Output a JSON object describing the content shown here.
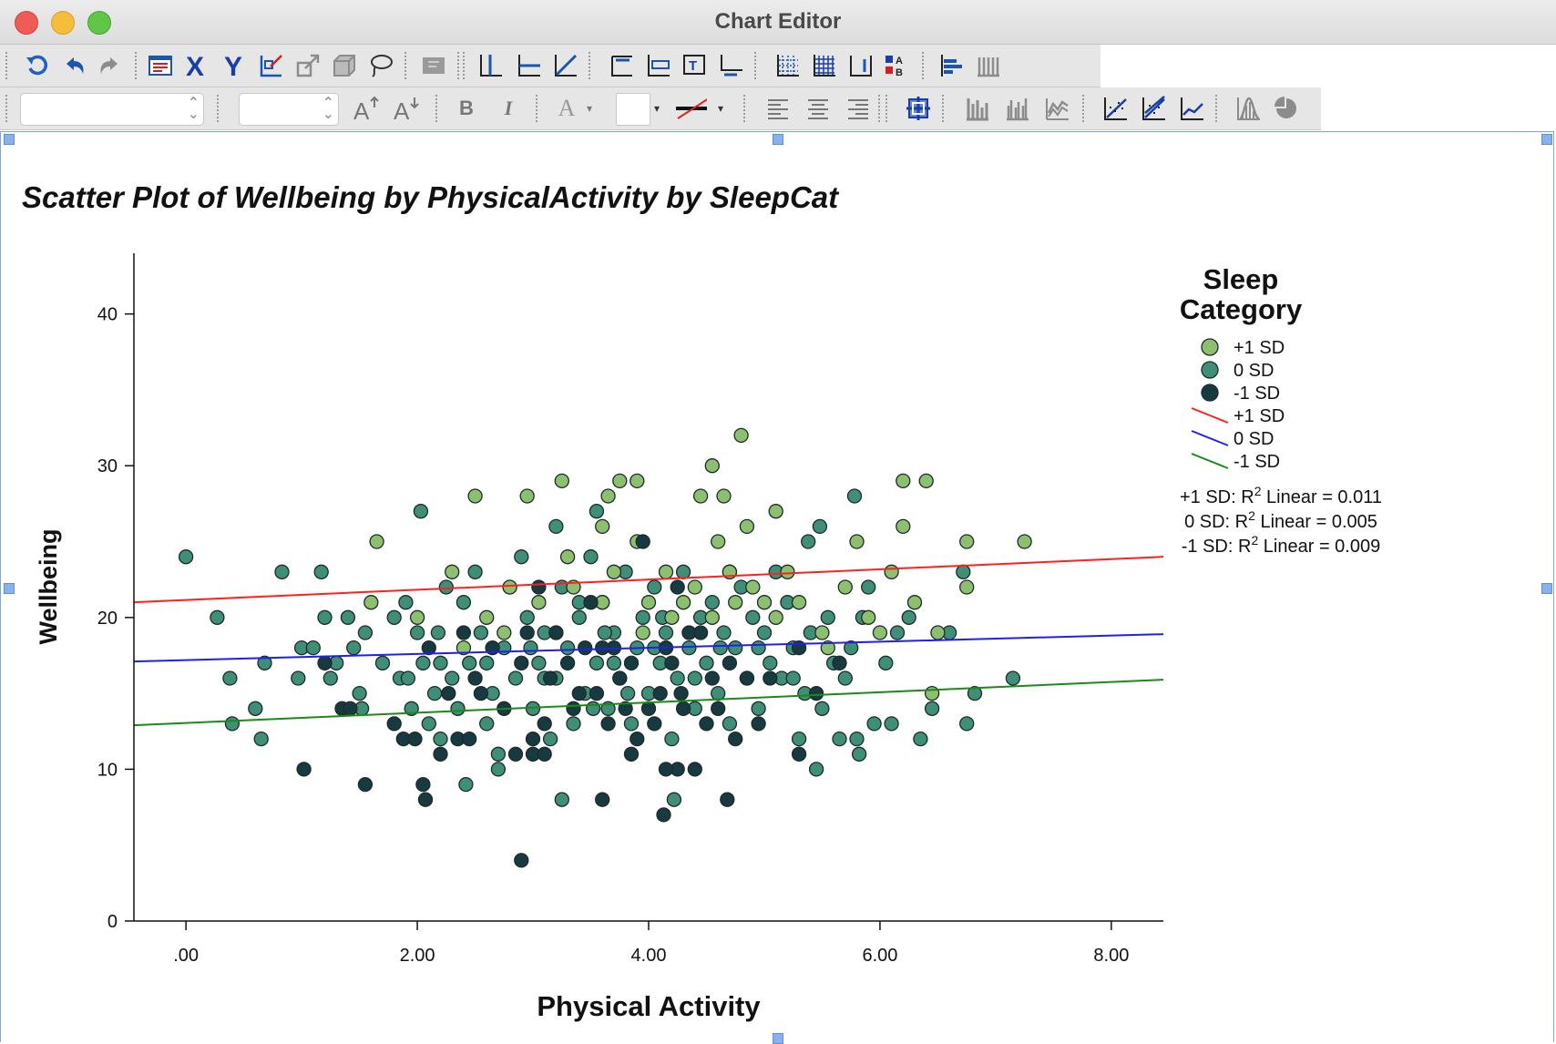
{
  "window": {
    "title": "Chart Editor",
    "controls": [
      "close",
      "minimize",
      "maximize"
    ]
  },
  "toolbar_row1": {
    "icons": [
      "rotate-icon",
      "undo-icon",
      "redo-icon",
      "properties-icon",
      "x-axis-icon",
      "y-axis-icon",
      "data-label-mode-icon",
      "rescale-icon",
      "3d-rotate-icon",
      "lasso-icon",
      "transpose-icon",
      "reference-line-x-icon",
      "reference-line-y-icon",
      "reference-line-equation-icon",
      "title-icon",
      "annotation-icon",
      "text-box-icon",
      "footnote-icon",
      "grid-lines-icon",
      "grid-icon",
      "data-labels-icon",
      "legend-icon",
      "bar-label-icon",
      "scale-icon"
    ]
  },
  "toolbar_row2": {
    "font_combo_value": "",
    "size_combo_value": "",
    "bold_label": "B",
    "italic_label": "I",
    "text_color_label": "A",
    "icons": [
      "font-grow-icon",
      "font-shrink-icon",
      "fill-color-icon",
      "line-style-icon",
      "align-left-icon",
      "align-center-icon",
      "align-right-icon",
      "data-id-icon",
      "bar-chart-icon",
      "clustered-bar-icon",
      "line-chart-icon",
      "fit-line-total-icon",
      "fit-line-subgroups-icon",
      "interpolation-line-icon",
      "distribution-curve-icon",
      "pie-icon"
    ]
  },
  "chart_data": {
    "type": "scatter",
    "title": "Scatter Plot of Wellbeing by PhysicalActivity by SleepCat",
    "xlabel": "Physical Activity",
    "ylabel": "Wellbeing",
    "xlim": [
      -0.45,
      8.45
    ],
    "ylim": [
      0,
      44
    ],
    "xticks": [
      0,
      2,
      4,
      6,
      8
    ],
    "xtick_labels": [
      ".00",
      "2.00",
      "4.00",
      "6.00",
      "8.00"
    ],
    "yticks": [
      0,
      10,
      20,
      30,
      40
    ],
    "ytick_labels": [
      "0",
      "10",
      "20",
      "30",
      "40"
    ],
    "grid": false,
    "legend": {
      "title": "Sleep\nCategory",
      "position": "right",
      "marker_entries": [
        {
          "label": "+1 SD",
          "color": "#8dc06e"
        },
        {
          "label": "0 SD",
          "color": "#3f8f78"
        },
        {
          "label": "-1 SD",
          "color": "#173a40"
        }
      ],
      "line_entries": [
        {
          "label": "+1 SD",
          "color": "#ff2020"
        },
        {
          "label": "0 SD",
          "color": "#2020ee"
        },
        {
          "label": "-1 SD",
          "color": "#1a8a1a"
        }
      ]
    },
    "annotations": [
      {
        "prefix": "+1 SD: R",
        "sup": "2",
        "suffix": " Linear = 0.011"
      },
      {
        "prefix": "0 SD: R",
        "sup": "2",
        "suffix": " Linear = 0.005"
      },
      {
        "prefix": "-1 SD: R",
        "sup": "2",
        "suffix": " Linear = 0.009"
      }
    ],
    "fit_lines": [
      {
        "name": "+1 SD",
        "color": "#ff2020",
        "x": [
          -0.45,
          8.45
        ],
        "y": [
          21.0,
          24.0
        ]
      },
      {
        "name": "0 SD",
        "color": "#2020ee",
        "x": [
          -0.45,
          8.45
        ],
        "y": [
          17.1,
          18.9
        ]
      },
      {
        "name": "-1 SD",
        "color": "#1a8a1a",
        "x": [
          -0.45,
          8.45
        ],
        "y": [
          12.9,
          15.9
        ]
      }
    ],
    "series": [
      {
        "name": "+1 SD",
        "color": "#8dc06e",
        "points": [
          [
            1.65,
            25
          ],
          [
            2.5,
            28
          ],
          [
            2.95,
            28
          ],
          [
            3.25,
            29
          ],
          [
            3.65,
            28
          ],
          [
            3.75,
            29
          ],
          [
            3.9,
            29
          ],
          [
            4.55,
            30
          ],
          [
            4.8,
            32
          ],
          [
            4.45,
            28
          ],
          [
            4.65,
            28
          ],
          [
            4.6,
            25
          ],
          [
            4.85,
            26
          ],
          [
            5.1,
            27
          ],
          [
            5.8,
            25
          ],
          [
            6.2,
            29
          ],
          [
            6.4,
            29
          ],
          [
            6.2,
            26
          ],
          [
            6.75,
            25
          ],
          [
            7.25,
            25
          ],
          [
            6.75,
            22
          ],
          [
            6.1,
            23
          ],
          [
            6.45,
            15
          ],
          [
            6.5,
            19
          ],
          [
            1.6,
            21
          ],
          [
            2.3,
            23
          ],
          [
            2.6,
            20
          ],
          [
            2.75,
            19
          ],
          [
            3.05,
            21
          ],
          [
            3.35,
            22
          ],
          [
            3.3,
            24
          ],
          [
            3.6,
            26
          ],
          [
            3.7,
            23
          ],
          [
            3.9,
            25
          ],
          [
            4.0,
            21
          ],
          [
            4.15,
            23
          ],
          [
            4.2,
            20
          ],
          [
            4.4,
            22
          ],
          [
            4.7,
            23
          ],
          [
            4.9,
            22
          ],
          [
            5.0,
            21
          ],
          [
            5.1,
            20
          ],
          [
            5.3,
            21
          ],
          [
            5.5,
            19
          ],
          [
            5.7,
            22
          ],
          [
            6.0,
            19
          ],
          [
            2.0,
            20
          ],
          [
            2.4,
            18
          ],
          [
            2.8,
            22
          ],
          [
            3.2,
            19
          ],
          [
            3.6,
            21
          ],
          [
            3.95,
            19
          ],
          [
            4.3,
            21
          ],
          [
            4.55,
            20
          ],
          [
            4.75,
            21
          ],
          [
            5.2,
            23
          ],
          [
            5.55,
            18
          ],
          [
            5.9,
            20
          ],
          [
            6.3,
            21
          ]
        ]
      },
      {
        "name": "0 SD",
        "color": "#3f8f78",
        "points": [
          [
            0.0,
            24
          ],
          [
            0.27,
            20
          ],
          [
            0.38,
            16
          ],
          [
            0.4,
            13
          ],
          [
            0.6,
            14
          ],
          [
            0.68,
            17
          ],
          [
            0.65,
            12
          ],
          [
            0.83,
            23
          ],
          [
            0.97,
            16
          ],
          [
            1.0,
            18
          ],
          [
            1.1,
            18
          ],
          [
            1.17,
            23
          ],
          [
            1.2,
            20
          ],
          [
            1.25,
            16
          ],
          [
            1.3,
            17
          ],
          [
            1.4,
            20
          ],
          [
            1.5,
            15
          ],
          [
            1.45,
            18
          ],
          [
            1.55,
            19
          ],
          [
            1.7,
            17
          ],
          [
            1.8,
            20
          ],
          [
            1.85,
            16
          ],
          [
            1.9,
            21
          ],
          [
            1.95,
            14
          ],
          [
            2.0,
            19
          ],
          [
            2.03,
            27
          ],
          [
            2.05,
            17
          ],
          [
            2.1,
            13
          ],
          [
            2.15,
            15
          ],
          [
            2.2,
            12
          ],
          [
            2.25,
            22
          ],
          [
            2.3,
            16
          ],
          [
            2.35,
            14
          ],
          [
            2.4,
            21
          ],
          [
            2.45,
            17
          ],
          [
            2.5,
            23
          ],
          [
            2.55,
            19
          ],
          [
            2.6,
            13
          ],
          [
            2.65,
            15
          ],
          [
            2.7,
            10
          ],
          [
            2.75,
            18
          ],
          [
            2.8,
            22
          ],
          [
            2.85,
            16
          ],
          [
            2.9,
            24
          ],
          [
            2.95,
            20
          ],
          [
            3.0,
            14
          ],
          [
            3.05,
            17
          ],
          [
            3.1,
            19
          ],
          [
            3.15,
            12
          ],
          [
            3.2,
            16
          ],
          [
            3.25,
            22
          ],
          [
            3.3,
            18
          ],
          [
            3.35,
            13
          ],
          [
            3.4,
            20
          ],
          [
            3.45,
            15
          ],
          [
            3.5,
            24
          ],
          [
            3.55,
            17
          ],
          [
            3.6,
            21
          ],
          [
            3.65,
            14
          ],
          [
            3.7,
            19
          ],
          [
            3.75,
            16
          ],
          [
            3.8,
            23
          ],
          [
            3.85,
            13
          ],
          [
            3.9,
            18
          ],
          [
            3.95,
            20
          ],
          [
            4.0,
            15
          ],
          [
            4.05,
            22
          ],
          [
            4.1,
            17
          ],
          [
            4.15,
            19
          ],
          [
            4.2,
            12
          ],
          [
            4.25,
            16
          ],
          [
            4.3,
            23
          ],
          [
            4.35,
            18
          ],
          [
            4.4,
            14
          ],
          [
            4.45,
            20
          ],
          [
            4.5,
            17
          ],
          [
            4.55,
            21
          ],
          [
            4.6,
            15
          ],
          [
            4.65,
            19
          ],
          [
            4.7,
            13
          ],
          [
            4.75,
            18
          ],
          [
            4.8,
            22
          ],
          [
            4.85,
            16
          ],
          [
            4.9,
            20
          ],
          [
            4.95,
            14
          ],
          [
            5.0,
            19
          ],
          [
            5.05,
            17
          ],
          [
            5.1,
            23
          ],
          [
            5.15,
            16
          ],
          [
            5.2,
            21
          ],
          [
            5.25,
            18
          ],
          [
            5.3,
            12
          ],
          [
            5.35,
            15
          ],
          [
            5.4,
            19
          ],
          [
            5.45,
            10
          ],
          [
            5.5,
            14
          ],
          [
            5.55,
            20
          ],
          [
            5.6,
            17
          ],
          [
            5.65,
            12
          ],
          [
            5.7,
            16
          ],
          [
            5.75,
            18
          ],
          [
            5.8,
            12
          ],
          [
            5.82,
            11
          ],
          [
            5.85,
            20
          ],
          [
            5.9,
            22
          ],
          [
            5.95,
            13
          ],
          [
            6.05,
            17
          ],
          [
            6.1,
            13
          ],
          [
            6.15,
            19
          ],
          [
            6.25,
            20
          ],
          [
            6.35,
            12
          ],
          [
            6.45,
            14
          ],
          [
            6.6,
            19
          ],
          [
            6.72,
            23
          ],
          [
            6.75,
            13
          ],
          [
            6.82,
            15
          ],
          [
            7.15,
            16
          ],
          [
            5.78,
            28
          ],
          [
            5.48,
            26
          ],
          [
            5.38,
            25
          ],
          [
            3.2,
            26
          ],
          [
            3.55,
            27
          ],
          [
            4.7,
            23
          ],
          [
            1.52,
            14
          ],
          [
            2.42,
            9
          ],
          [
            2.7,
            11
          ],
          [
            3.25,
            8
          ],
          [
            4.22,
            8
          ],
          [
            3.1,
            16
          ],
          [
            3.4,
            21
          ],
          [
            3.7,
            17
          ],
          [
            4.05,
            18
          ],
          [
            4.4,
            16
          ],
          [
            2.6,
            17
          ],
          [
            2.2,
            17
          ],
          [
            1.92,
            16
          ],
          [
            4.95,
            18
          ],
          [
            5.25,
            16
          ],
          [
            3.82,
            15
          ],
          [
            3.52,
            14
          ],
          [
            2.98,
            18
          ],
          [
            2.18,
            19
          ],
          [
            4.62,
            18
          ],
          [
            4.12,
            20
          ],
          [
            3.62,
            19
          ]
        ]
      },
      {
        "name": "-1 SD",
        "color": "#173a40",
        "points": [
          [
            1.02,
            10
          ],
          [
            1.55,
            9
          ],
          [
            2.05,
            9
          ],
          [
            2.07,
            8
          ],
          [
            2.9,
            4
          ],
          [
            3.6,
            8
          ],
          [
            4.13,
            7
          ],
          [
            4.68,
            8
          ],
          [
            4.25,
            10
          ],
          [
            4.4,
            10
          ],
          [
            4.15,
            10
          ],
          [
            3.85,
            11
          ],
          [
            5.3,
            11
          ],
          [
            1.2,
            17
          ],
          [
            1.35,
            14
          ],
          [
            1.42,
            14
          ],
          [
            1.8,
            13
          ],
          [
            1.88,
            12
          ],
          [
            1.98,
            12
          ],
          [
            2.1,
            18
          ],
          [
            2.2,
            11
          ],
          [
            2.27,
            15
          ],
          [
            2.35,
            12
          ],
          [
            2.45,
            12
          ],
          [
            2.4,
            19
          ],
          [
            2.5,
            16
          ],
          [
            2.55,
            15
          ],
          [
            2.65,
            18
          ],
          [
            2.75,
            14
          ],
          [
            2.85,
            11
          ],
          [
            2.9,
            17
          ],
          [
            3.0,
            12
          ],
          [
            3.05,
            22
          ],
          [
            3.1,
            13
          ],
          [
            3.15,
            16
          ],
          [
            3.2,
            19
          ],
          [
            3.3,
            17
          ],
          [
            3.35,
            14
          ],
          [
            3.45,
            18
          ],
          [
            3.5,
            21
          ],
          [
            3.55,
            15
          ],
          [
            3.65,
            13
          ],
          [
            3.7,
            18
          ],
          [
            3.75,
            16
          ],
          [
            3.8,
            14
          ],
          [
            3.85,
            17
          ],
          [
            3.9,
            12
          ],
          [
            3.95,
            25
          ],
          [
            4.0,
            14
          ],
          [
            4.05,
            13
          ],
          [
            4.1,
            15
          ],
          [
            4.2,
            17
          ],
          [
            4.25,
            22
          ],
          [
            4.3,
            14
          ],
          [
            4.35,
            19
          ],
          [
            4.45,
            19
          ],
          [
            4.5,
            13
          ],
          [
            4.55,
            16
          ],
          [
            4.6,
            14
          ],
          [
            4.7,
            17
          ],
          [
            4.75,
            12
          ],
          [
            4.85,
            16
          ],
          [
            4.95,
            13
          ],
          [
            5.05,
            16
          ],
          [
            5.3,
            18
          ],
          [
            5.45,
            15
          ],
          [
            5.65,
            17
          ],
          [
            3.0,
            11
          ],
          [
            3.1,
            11
          ],
          [
            2.95,
            19
          ],
          [
            3.4,
            15
          ],
          [
            3.6,
            18
          ],
          [
            4.15,
            18
          ],
          [
            4.28,
            15
          ]
        ]
      }
    ]
  }
}
